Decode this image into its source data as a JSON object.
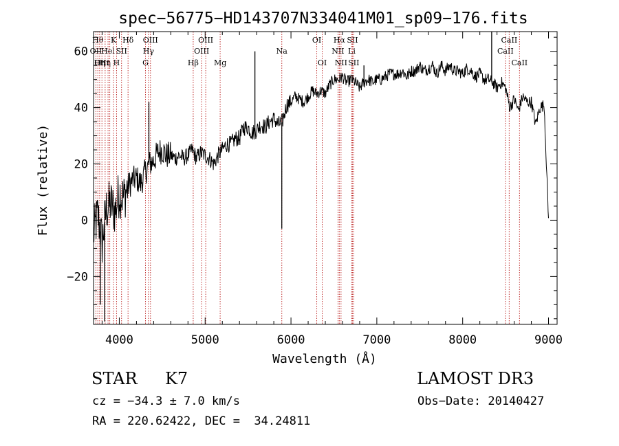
{
  "chart_data": {
    "type": "line",
    "title": "spec−56775−HD143707N334041M01_sp09−176.fits",
    "xlabel": "Wavelength (Å)",
    "ylabel": "Flux (relative)",
    "xlim": [
      3700,
      9100
    ],
    "ylim": [
      -37,
      67
    ],
    "xticks": [
      4000,
      5000,
      6000,
      7000,
      8000,
      9000
    ],
    "yticks": [
      -20,
      0,
      20,
      40,
      60
    ],
    "grid": false,
    "series": [
      {
        "name": "flux",
        "x": [
          3700,
          3750,
          3800,
          3850,
          3900,
          3950,
          4000,
          4050,
          4100,
          4150,
          4200,
          4250,
          4300,
          4350,
          4400,
          4450,
          4500,
          4550,
          4600,
          4650,
          4700,
          4750,
          4800,
          4850,
          4900,
          4950,
          5000,
          5050,
          5100,
          5150,
          5200,
          5250,
          5300,
          5350,
          5400,
          5450,
          5500,
          5550,
          5600,
          5650,
          5700,
          5750,
          5800,
          5850,
          5900,
          5950,
          6000,
          6050,
          6100,
          6150,
          6200,
          6250,
          6300,
          6350,
          6400,
          6450,
          6500,
          6550,
          6600,
          6650,
          6700,
          6750,
          6800,
          6850,
          6900,
          6950,
          7000,
          7050,
          7100,
          7150,
          7200,
          7250,
          7300,
          7350,
          7400,
          7450,
          7500,
          7550,
          7600,
          7650,
          7700,
          7750,
          7800,
          7850,
          7900,
          7950,
          8000,
          8050,
          8100,
          8150,
          8200,
          8250,
          8300,
          8350,
          8400,
          8450,
          8500,
          8550,
          8600,
          8650,
          8700,
          8750,
          8800,
          8850,
          8900,
          8950,
          9000
        ],
        "y": [
          -5,
          2,
          -8,
          4,
          6,
          3,
          10,
          8,
          12,
          14,
          15,
          13,
          17,
          20,
          21,
          24,
          25,
          23,
          23,
          22,
          23,
          22,
          23,
          25,
          22,
          24,
          23,
          22,
          20,
          23,
          25,
          27,
          27,
          29,
          29,
          33,
          33,
          31,
          32,
          34,
          33,
          35,
          36,
          34,
          35,
          41,
          42,
          44,
          43,
          42,
          44,
          46,
          45,
          46,
          45,
          48,
          50,
          50,
          51,
          49,
          50,
          49,
          47,
          49,
          50,
          49,
          50,
          50,
          51,
          52,
          52,
          52,
          53,
          51,
          53,
          53,
          55,
          53,
          54,
          55,
          52,
          55,
          53,
          55,
          53,
          53,
          52,
          54,
          53,
          51,
          52,
          50,
          50,
          49,
          47,
          49,
          47,
          40,
          43,
          39,
          44,
          42,
          42,
          34,
          40,
          41,
          0
        ],
        "spikes": [
          {
            "x": 4345,
            "y": 42
          },
          {
            "x": 5580,
            "y": 60
          },
          {
            "x": 5893,
            "y": -3
          },
          {
            "x": 6850,
            "y": 55
          },
          {
            "x": 8338,
            "y": 67
          },
          {
            "x": 3830,
            "y": -36
          },
          {
            "x": 3780,
            "y": -30
          },
          {
            "x": 9005,
            "y": 0
          }
        ]
      }
    ],
    "line_markers": [
      {
        "x": 3728,
        "label": "OII",
        "row": 2
      },
      {
        "x": 3750,
        "label": "Hθ",
        "row": 1
      },
      {
        "x": 3771,
        "label": "Hη",
        "row": 3
      },
      {
        "x": 3798,
        "label": "OIII",
        "row": 3
      },
      {
        "x": 3835,
        "label": "Hη",
        "row": 3
      },
      {
        "x": 3869,
        "label": "Hel",
        "row": 2
      },
      {
        "x": 3889,
        "label": "",
        "row": 0
      },
      {
        "x": 3933,
        "label": "K",
        "row": 1
      },
      {
        "x": 3968,
        "label": "H",
        "row": 3
      },
      {
        "x": 4026,
        "label": "SII",
        "row": 2
      },
      {
        "x": 4102,
        "label": "Hδ",
        "row": 1
      },
      {
        "x": 4305,
        "label": "G",
        "row": 3
      },
      {
        "x": 4340,
        "label": "Hγ",
        "row": 2
      },
      {
        "x": 4363,
        "label": "OIII",
        "row": 1
      },
      {
        "x": 4861,
        "label": "Hβ",
        "row": 3
      },
      {
        "x": 4959,
        "label": "OIII",
        "row": 2
      },
      {
        "x": 5007,
        "label": "OIII",
        "row": 1
      },
      {
        "x": 5175,
        "label": "Mg",
        "row": 3
      },
      {
        "x": 5893,
        "label": "Na",
        "row": 2
      },
      {
        "x": 6300,
        "label": "OI",
        "row": 1
      },
      {
        "x": 6364,
        "label": "OI",
        "row": 3
      },
      {
        "x": 6548,
        "label": "NII",
        "row": 2
      },
      {
        "x": 6563,
        "label": "Hα",
        "row": 1
      },
      {
        "x": 6583,
        "label": "NII",
        "row": 3
      },
      {
        "x": 6708,
        "label": "Li",
        "row": 2
      },
      {
        "x": 6716,
        "label": "SII",
        "row": 1
      },
      {
        "x": 6731,
        "label": "SII",
        "row": 3
      },
      {
        "x": 8498,
        "label": "CaII",
        "row": 2
      },
      {
        "x": 8542,
        "label": "CaII",
        "row": 1
      },
      {
        "x": 8662,
        "label": "CaII",
        "row": 3
      }
    ],
    "colors": {
      "spectrum": "#000000",
      "marker": "#c0302f",
      "axis": "#000000"
    }
  },
  "info": {
    "class_label": "STAR",
    "subclass_label": "K7",
    "survey": "LAMOST DR3",
    "cz": "cz = −34.3 ± 7.0 km/s",
    "obs_date": "Obs−Date: 20140427",
    "coords": "RA = 220.62422, DEC =  34.24811"
  }
}
